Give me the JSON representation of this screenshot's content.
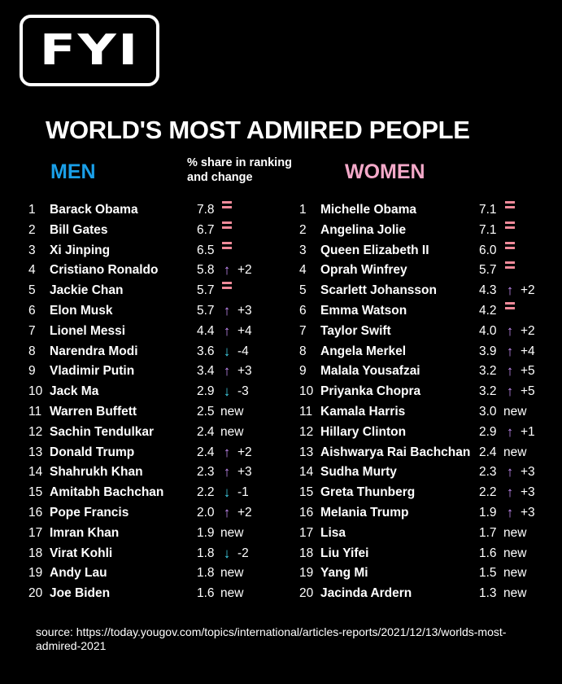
{
  "logo": {
    "text": "FYI"
  },
  "title": "WORLD'S MOST ADMIRED PEOPLE",
  "headings": {
    "men": "MEN",
    "women": "WOMEN",
    "share": "% share in ranking and change"
  },
  "colors": {
    "men": "#1a9fe8",
    "women": "#f4a9c9",
    "up": "#c68cf6",
    "down": "#3fd0e6",
    "equal": "#f08a9a"
  },
  "icons": {
    "up": "arrow-up-icon",
    "down": "arrow-down-icon",
    "equal": "equal-icon"
  },
  "men": [
    {
      "rank": "1",
      "name": "Barack Obama",
      "share": "7.8",
      "dir": "eq",
      "change": ""
    },
    {
      "rank": "2",
      "name": "Bill Gates",
      "share": "6.7",
      "dir": "eq",
      "change": ""
    },
    {
      "rank": "3",
      "name": "Xi Jinping",
      "share": "6.5",
      "dir": "eq",
      "change": ""
    },
    {
      "rank": "4",
      "name": "Cristiano Ronaldo",
      "share": "5.8",
      "dir": "up",
      "change": "+2"
    },
    {
      "rank": "5",
      "name": "Jackie Chan",
      "share": "5.7",
      "dir": "eq",
      "change": ""
    },
    {
      "rank": "6",
      "name": "Elon Musk",
      "share": "5.7",
      "dir": "up",
      "change": "+3"
    },
    {
      "rank": "7",
      "name": "Lionel Messi",
      "share": "4.4",
      "dir": "up",
      "change": "+4"
    },
    {
      "rank": "8",
      "name": "Narendra Modi",
      "share": "3.6",
      "dir": "down",
      "change": "-4"
    },
    {
      "rank": "9",
      "name": "Vladimir Putin",
      "share": "3.4",
      "dir": "up",
      "change": "+3"
    },
    {
      "rank": "10",
      "name": "Jack Ma",
      "share": "2.9",
      "dir": "down",
      "change": "-3"
    },
    {
      "rank": "11",
      "name": "Warren Buffett",
      "share": "2.5",
      "dir": "new",
      "change": "new"
    },
    {
      "rank": "12",
      "name": "Sachin Tendulkar",
      "share": "2.4",
      "dir": "new",
      "change": "new"
    },
    {
      "rank": "13",
      "name": "Donald Trump",
      "share": "2.4",
      "dir": "up",
      "change": "+2"
    },
    {
      "rank": "14",
      "name": "Shahrukh Khan",
      "share": "2.3",
      "dir": "up",
      "change": "+3"
    },
    {
      "rank": "15",
      "name": "Amitabh Bachchan",
      "share": "2.2",
      "dir": "down",
      "change": "-1"
    },
    {
      "rank": "16",
      "name": "Pope Francis",
      "share": "2.0",
      "dir": "up",
      "change": "+2"
    },
    {
      "rank": "17",
      "name": "Imran Khan",
      "share": "1.9",
      "dir": "new",
      "change": "new"
    },
    {
      "rank": "18",
      "name": "Virat Kohli",
      "share": "1.8",
      "dir": "down",
      "change": "-2"
    },
    {
      "rank": "19",
      "name": "Andy Lau",
      "share": "1.8",
      "dir": "new",
      "change": "new"
    },
    {
      "rank": "20",
      "name": "Joe Biden",
      "share": "1.6",
      "dir": "new",
      "change": "new"
    }
  ],
  "women": [
    {
      "rank": "1",
      "name": "Michelle Obama",
      "share": "7.1",
      "dir": "eq",
      "change": ""
    },
    {
      "rank": "2",
      "name": "Angelina Jolie",
      "share": "7.1",
      "dir": "eq",
      "change": ""
    },
    {
      "rank": "3",
      "name": "Queen Elizabeth II",
      "share": "6.0",
      "dir": "eq",
      "change": ""
    },
    {
      "rank": "4",
      "name": "Oprah Winfrey",
      "share": "5.7",
      "dir": "eq",
      "change": ""
    },
    {
      "rank": "5",
      "name": "Scarlett Johansson",
      "share": "4.3",
      "dir": "up",
      "change": "+2"
    },
    {
      "rank": "6",
      "name": "Emma Watson",
      "share": "4.2",
      "dir": "eq",
      "change": ""
    },
    {
      "rank": "7",
      "name": "Taylor Swift",
      "share": "4.0",
      "dir": "up",
      "change": "+2"
    },
    {
      "rank": "8",
      "name": "Angela Merkel",
      "share": "3.9",
      "dir": "up",
      "change": "+4"
    },
    {
      "rank": "9",
      "name": "Malala Yousafzai",
      "share": "3.2",
      "dir": "up",
      "change": "+5"
    },
    {
      "rank": "10",
      "name": "Priyanka Chopra",
      "share": "3.2",
      "dir": "up",
      "change": "+5"
    },
    {
      "rank": "11",
      "name": "Kamala Harris",
      "share": "3.0",
      "dir": "new",
      "change": "new"
    },
    {
      "rank": "12",
      "name": "Hillary Clinton",
      "share": "2.9",
      "dir": "up",
      "change": "+1"
    },
    {
      "rank": "13",
      "name": "Aishwarya Rai Bachchan",
      "share": "2.4",
      "dir": "new",
      "change": "new"
    },
    {
      "rank": "14",
      "name": "Sudha Murty",
      "share": "2.3",
      "dir": "up",
      "change": "+3"
    },
    {
      "rank": "15",
      "name": "Greta Thunberg",
      "share": "2.2",
      "dir": "up",
      "change": "+3"
    },
    {
      "rank": "16",
      "name": "Melania Trump",
      "share": "1.9",
      "dir": "up",
      "change": "+3"
    },
    {
      "rank": "17",
      "name": "Lisa",
      "share": "1.7",
      "dir": "new",
      "change": "new"
    },
    {
      "rank": "18",
      "name": "Liu Yifei",
      "share": "1.6",
      "dir": "new",
      "change": "new"
    },
    {
      "rank": "19",
      "name": "Yang Mi",
      "share": "1.5",
      "dir": "new",
      "change": "new"
    },
    {
      "rank": "20",
      "name": "Jacinda Ardern",
      "share": "1.3",
      "dir": "new",
      "change": "new"
    }
  ],
  "source": "source: https://today.yougov.com/topics/international/articles-reports/2021/12/13/worlds-most-admired-2021"
}
